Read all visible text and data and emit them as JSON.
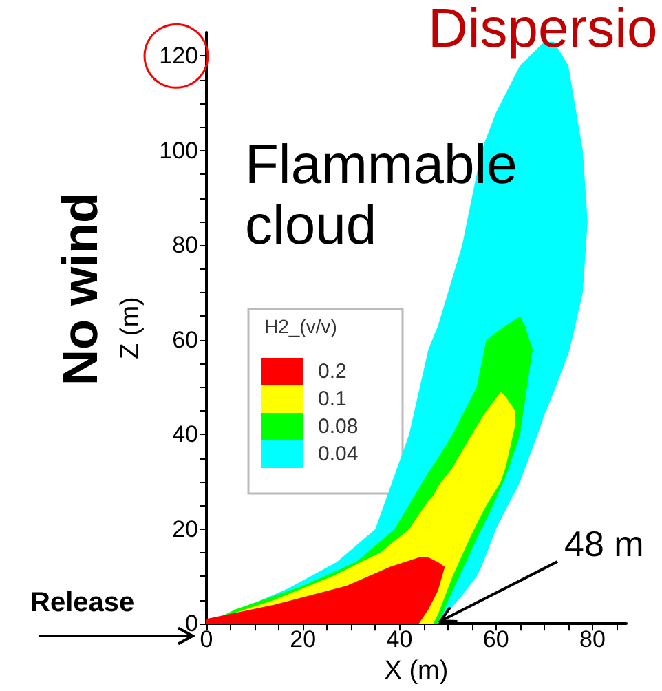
{
  "chart_data": {
    "type": "area",
    "title": "Dispersio",
    "xlabel": "X (m)",
    "ylabel": "Z (m)",
    "legend_title": "H2_(v/v)",
    "legend": "left",
    "annotations": [
      "Flammable\ncloud",
      "No wind",
      "Release",
      {
        "text": "48 m",
        "x": 48,
        "y": 0
      }
    ],
    "xlim": [
      0,
      87
    ],
    "ylim": [
      0,
      125
    ],
    "xticks": [
      0,
      {
        "value": 5,
        "label": null
      },
      {
        "value": 10,
        "label": null
      },
      {
        "value": 15,
        "label": null
      },
      20,
      {
        "value": 25,
        "label": null
      },
      {
        "value": 30,
        "label": null
      },
      {
        "value": 35,
        "label": null
      },
      40,
      {
        "value": 45,
        "label": null
      },
      {
        "value": 50,
        "label": null
      },
      {
        "value": 55,
        "label": null
      },
      60,
      {
        "value": 65,
        "label": null
      },
      {
        "value": 70,
        "label": null
      },
      {
        "value": 75,
        "label": null
      },
      80,
      {
        "value": 85,
        "label": null
      }
    ],
    "yticks": [
      0,
      {
        "value": 5,
        "label": null
      },
      {
        "value": 10,
        "label": null
      },
      {
        "value": 15,
        "label": null
      },
      20,
      {
        "value": 25,
        "label": null
      },
      {
        "value": 30,
        "label": null
      },
      {
        "value": 35,
        "label": null
      },
      40,
      {
        "value": 45,
        "label": null
      },
      {
        "value": 50,
        "label": null
      },
      {
        "value": 55,
        "label": null
      },
      60,
      {
        "value": 65,
        "label": null
      },
      {
        "value": 70,
        "label": null
      },
      {
        "value": 75,
        "label": null
      },
      80,
      {
        "value": 85,
        "label": null
      },
      {
        "value": 90,
        "label": null
      },
      {
        "value": 95,
        "label": null
      },
      100,
      {
        "value": 105,
        "label": null
      },
      {
        "value": 110,
        "label": null
      },
      {
        "value": 115,
        "label": null
      },
      120
    ],
    "grid": false,
    "series": [
      {
        "name": "0.2",
        "color": "#ff0000",
        "x": [
          0,
          14,
          29,
          38,
          44,
          46,
          48,
          49.4,
          48,
          46,
          44,
          0
        ],
        "values": [
          1,
          4,
          8,
          12,
          14,
          14,
          13,
          12,
          7,
          3,
          0,
          0
        ]
      },
      {
        "name": "0.1",
        "color": "#ffff00",
        "x": [
          0,
          5,
          14,
          26,
          36,
          42,
          46,
          47,
          48,
          51,
          55,
          58,
          61,
          62,
          64,
          64,
          62,
          61,
          58,
          55,
          51,
          48,
          47
        ],
        "values": [
          0,
          2,
          5,
          10,
          15,
          20,
          26,
          27,
          29,
          33,
          40,
          45,
          49,
          48,
          45,
          42,
          33,
          30,
          25,
          19,
          10,
          2,
          0
        ]
      },
      {
        "name": "0.08",
        "color": "#00ff00",
        "x": [
          0,
          6,
          20,
          31,
          39,
          46,
          48,
          51,
          52,
          56,
          57,
          58,
          62,
          65,
          66,
          67.6,
          66,
          65,
          62,
          58,
          57,
          56,
          52,
          51,
          48
        ],
        "values": [
          0,
          3,
          8,
          13,
          20,
          32,
          35,
          40,
          42,
          50,
          55,
          60,
          63,
          65,
          63,
          58,
          47,
          40,
          31,
          22,
          20,
          18,
          9,
          7,
          0
        ]
      },
      {
        "name": "0.04",
        "color": "#00ffff",
        "x": [
          0,
          8,
          17,
          27,
          35,
          42,
          46,
          48,
          53,
          56,
          57,
          60,
          61,
          65,
          69,
          70,
          72,
          75,
          76,
          78,
          79,
          78,
          76,
          75,
          72,
          70,
          69,
          65,
          61,
          60,
          57,
          56,
          53,
          48
        ],
        "values": [
          0,
          3.5,
          7.5,
          13,
          20,
          40,
          58,
          63,
          80,
          95,
          100,
          108,
          110,
          118,
          122,
          123,
          123,
          118,
          112,
          100,
          85,
          70,
          61,
          57,
          49,
          44,
          41,
          30,
          22,
          20,
          12,
          10,
          6,
          0
        ]
      }
    ]
  }
}
